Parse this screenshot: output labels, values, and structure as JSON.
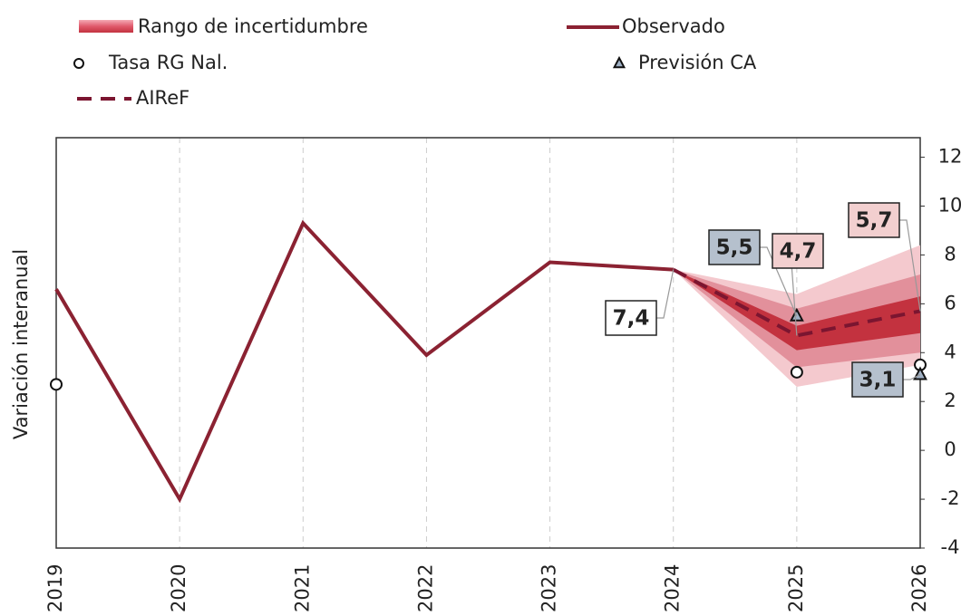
{
  "chart_data": {
    "type": "line",
    "y_axis_label": "Variación interanual",
    "x": [
      2019,
      2020,
      2021,
      2022,
      2023,
      2024,
      2025,
      2026
    ],
    "y2lim": [
      -4,
      12.8
    ],
    "y2ticks": [
      -4,
      -2,
      0,
      2,
      4,
      6,
      8,
      10,
      12
    ],
    "grid": true,
    "legend": "top",
    "uncertainty": {
      "name": "Rango de incertidumbre",
      "bands": [
        {
          "color": "#f4c9ce",
          "lower": [
            null,
            null,
            null,
            null,
            null,
            7.4,
            2.6,
            3.5
          ],
          "upper": [
            null,
            null,
            null,
            null,
            null,
            7.4,
            6.4,
            8.4
          ]
        },
        {
          "color": "#e2909b",
          "lower": [
            null,
            null,
            null,
            null,
            null,
            7.4,
            3.4,
            4.0
          ],
          "upper": [
            null,
            null,
            null,
            null,
            null,
            7.4,
            5.8,
            7.2
          ]
        },
        {
          "color": "#c3323f",
          "lower": [
            null,
            null,
            null,
            null,
            null,
            7.4,
            4.1,
            4.8
          ],
          "upper": [
            null,
            null,
            null,
            null,
            null,
            7.4,
            5.1,
            6.3
          ]
        }
      ]
    },
    "series": [
      {
        "name": "Observado",
        "kind": "line",
        "color": "#8b2232",
        "axis": "y2",
        "values": [
          6.6,
          -2,
          9.3,
          3.9,
          7.7,
          7.4,
          null,
          null
        ],
        "value_labels": [
          null,
          null,
          null,
          null,
          null,
          "7,4",
          null,
          null
        ]
      },
      {
        "name": "Tasa RG Nal.",
        "kind": "circle",
        "color": "#ffffff",
        "axis": "y2",
        "values": [
          2.7,
          null,
          null,
          null,
          null,
          null,
          3.2,
          3.5
        ]
      },
      {
        "name": "Previsión CA",
        "kind": "triangle",
        "color": "#9fb0c4",
        "axis": "y2",
        "values": [
          null,
          null,
          null,
          null,
          null,
          null,
          5.5,
          3.1
        ],
        "value_labels": [
          null,
          null,
          null,
          null,
          null,
          null,
          "5,5",
          "3,1"
        ]
      },
      {
        "name": "AIReF",
        "kind": "dashed",
        "color": "#7b1530",
        "axis": "y2",
        "values": [
          null,
          null,
          null,
          null,
          null,
          7.4,
          4.7,
          5.7
        ],
        "value_labels": [
          null,
          null,
          null,
          null,
          null,
          null,
          "4,7",
          "5,7"
        ]
      }
    ]
  }
}
